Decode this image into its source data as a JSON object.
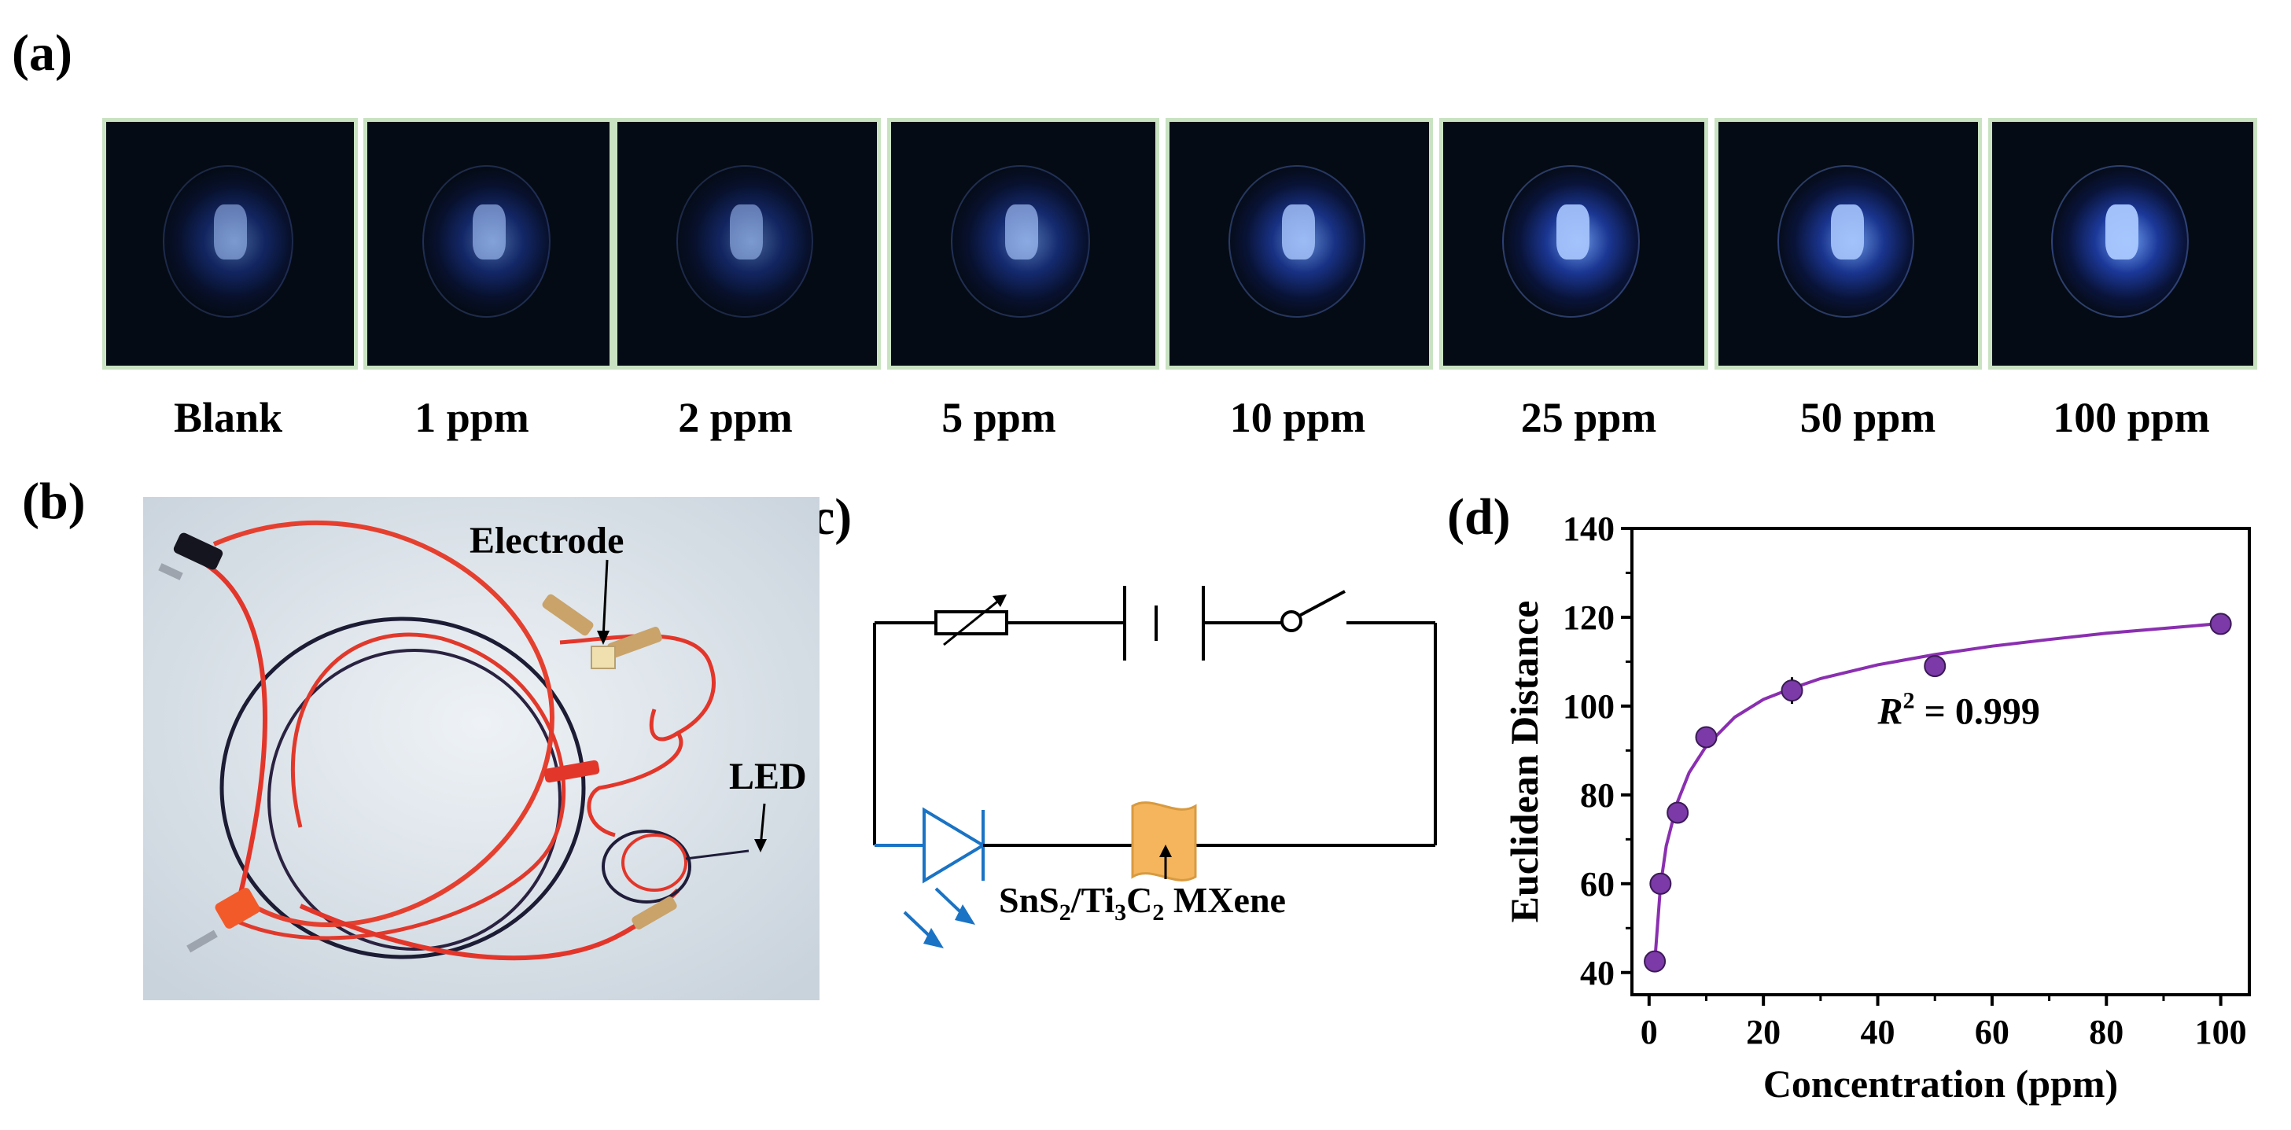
{
  "panels": {
    "a": "(a)",
    "b": "(b)",
    "c": "(c)",
    "d": "(d)"
  },
  "strip": {
    "captions": [
      "Blank",
      "1 ppm",
      "2 ppm",
      "5 ppm",
      "10 ppm",
      "25 ppm",
      "50 ppm",
      "100 ppm"
    ]
  },
  "photo_b": {
    "electrode_label": "Electrode",
    "led_label": "LED"
  },
  "circuit": {
    "material_label_parts": [
      "SnS",
      "2",
      "/Ti",
      "3",
      "C",
      "2",
      " MXene"
    ],
    "led_color": "#1a73c4",
    "material_color": "#f5b55c"
  },
  "chart_data": {
    "type": "scatter",
    "xlabel": "Concentration (ppm)",
    "ylabel": "Euclidean Distance",
    "xlim": [
      -3,
      105
    ],
    "ylim": [
      35,
      140
    ],
    "xticks": [
      0,
      20,
      40,
      60,
      80,
      100
    ],
    "yticks": [
      40,
      60,
      80,
      100,
      120,
      140
    ],
    "points": {
      "x": [
        1,
        2,
        5,
        10,
        25,
        50,
        100
      ],
      "y": [
        42.5,
        60,
        76,
        93,
        103.5,
        109,
        118.5
      ],
      "yerr": [
        1,
        1,
        2,
        1,
        3,
        1.5,
        1
      ]
    },
    "fit": {
      "description": "fit curve",
      "x": [
        1,
        2,
        3,
        5,
        7,
        10,
        15,
        20,
        25,
        30,
        40,
        50,
        60,
        70,
        80,
        90,
        100
      ],
      "y": [
        42.5,
        59.5,
        68.5,
        78.5,
        85,
        91,
        97.5,
        101.5,
        104,
        106.2,
        109.3,
        111.6,
        113.5,
        115,
        116.4,
        117.5,
        118.6
      ]
    },
    "annotation": {
      "text_main": "R",
      "text_sup": "2",
      "text_rest": " = 0.999",
      "x": 40,
      "y": 96
    },
    "marker_color": "#7b3aa8",
    "line_color": "#8a2fb0"
  }
}
